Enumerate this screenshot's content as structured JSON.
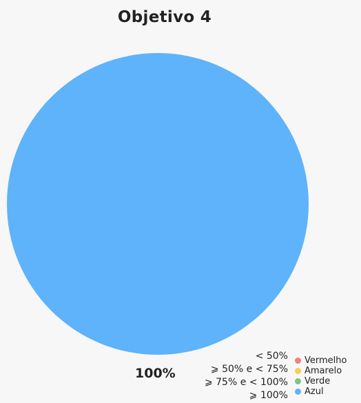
{
  "chart_data": {
    "type": "pie",
    "title": "Objetivo 4",
    "slices": [
      {
        "label": "Azul",
        "value": 100,
        "color": "#5eb3fa"
      }
    ],
    "slice_label": "100%",
    "ranges": [
      "< 50%",
      "⩾ 50% e < 75%",
      "⩾ 75% e < 100%",
      "⩾ 100%"
    ],
    "legend": [
      {
        "name": "Vermelho",
        "color": "#f08080"
      },
      {
        "name": "Amarelo",
        "color": "#f7d04a"
      },
      {
        "name": "Verde",
        "color": "#7cc784"
      },
      {
        "name": "Azul",
        "color": "#5eb3fa"
      }
    ],
    "legend_position": "bottom-right"
  }
}
